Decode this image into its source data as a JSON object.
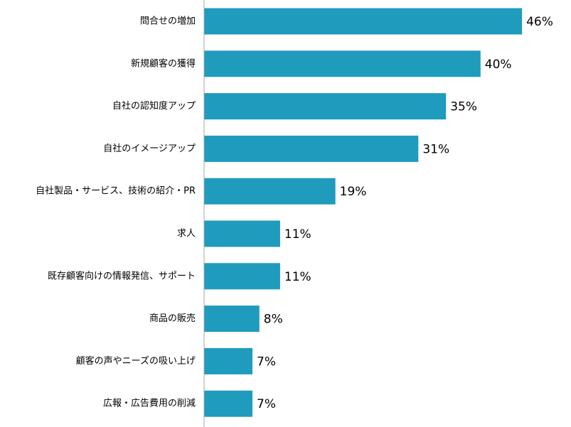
{
  "chart_data": {
    "type": "bar",
    "orientation": "horizontal",
    "categories": [
      "問合せの増加",
      "新規顧客の獲得",
      "自社の認知度アップ",
      "自社のイメージアップ",
      "自社製品・サービス、技術の紹介・PR",
      "求人",
      "既存顧客向けの情報発信、サポート",
      "商品の販売",
      "顧客の声やニーズの吸い上げ",
      "広報・広告費用の削減"
    ],
    "values": [
      46,
      40,
      35,
      31,
      19,
      11,
      11,
      8,
      7,
      7
    ],
    "value_labels": [
      "46%",
      "40%",
      "35%",
      "31%",
      "19%",
      "11%",
      "11%",
      "8%",
      "7%",
      "7%"
    ],
    "unit": "%",
    "xlim": [
      0,
      50
    ],
    "grid": false,
    "legend": "none",
    "bar_color": "#1f9bbd",
    "axis_color": "#a6a6a6"
  }
}
